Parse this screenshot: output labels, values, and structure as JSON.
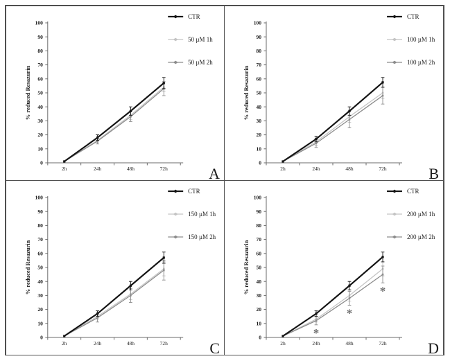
{
  "figure": {
    "description": "Four-panel line chart figure, resazurin reduction assay",
    "background_color": "#ffffff",
    "frame_color": "#4f4f4f"
  },
  "chart_data": [
    {
      "type": "line",
      "panel_label": "A",
      "ylabel": "% reduced Resazurin",
      "xlabel": "",
      "ylim": [
        0,
        100
      ],
      "yticks": [
        0,
        10,
        20,
        30,
        40,
        50,
        60,
        70,
        80,
        90,
        100
      ],
      "categories": [
        "2h",
        "24h",
        "48h",
        "72h"
      ],
      "grid": false,
      "legend_position": "top-right",
      "series": [
        {
          "name": "CTR",
          "color": "#141414",
          "line_width": 2.2,
          "values": [
            1,
            18,
            37,
            57
          ],
          "errors": [
            0.5,
            2,
            3,
            4
          ]
        },
        {
          "name": "50 µM 1h",
          "color": "#c4c4c4",
          "line_width": 1.3,
          "values": [
            1,
            16,
            34,
            54
          ],
          "errors": [
            0.5,
            1.5,
            3,
            3
          ]
        },
        {
          "name": "50 µM 2h",
          "color": "#8c8c8c",
          "line_width": 1.3,
          "values": [
            1,
            15.5,
            33,
            53
          ],
          "errors": [
            0.5,
            2,
            3.5,
            5
          ]
        }
      ],
      "significance": []
    },
    {
      "type": "line",
      "panel_label": "B",
      "ylabel": "% reduced Resazurin",
      "xlabel": "",
      "ylim": [
        0,
        100
      ],
      "yticks": [
        0,
        10,
        20,
        30,
        40,
        50,
        60,
        70,
        80,
        90,
        100
      ],
      "categories": [
        "2h",
        "24h",
        "48h",
        "72h"
      ],
      "grid": false,
      "legend_position": "top-right",
      "series": [
        {
          "name": "CTR",
          "color": "#141414",
          "line_width": 2.2,
          "values": [
            1,
            17,
            37,
            57.5
          ],
          "errors": [
            0.5,
            2,
            3,
            3.5
          ]
        },
        {
          "name": "100 µM 1h",
          "color": "#c4c4c4",
          "line_width": 1.3,
          "values": [
            1,
            15,
            33,
            50
          ],
          "errors": [
            0.5,
            2.5,
            4,
            4
          ]
        },
        {
          "name": "100 µM 2h",
          "color": "#8c8c8c",
          "line_width": 1.3,
          "values": [
            1,
            14,
            31,
            48
          ],
          "errors": [
            0.5,
            3,
            6,
            6
          ]
        }
      ],
      "significance": []
    },
    {
      "type": "line",
      "panel_label": "C",
      "ylabel": "% reduced Resazurin",
      "xlabel": "",
      "ylim": [
        0,
        100
      ],
      "yticks": [
        0,
        10,
        20,
        30,
        40,
        50,
        60,
        70,
        80,
        90,
        100
      ],
      "categories": [
        "2h",
        "24h",
        "48h",
        "72h"
      ],
      "grid": false,
      "legend_position": "top-right",
      "series": [
        {
          "name": "CTR",
          "color": "#141414",
          "line_width": 2.2,
          "values": [
            1,
            17,
            37,
            57
          ],
          "errors": [
            0.5,
            2,
            3,
            4
          ]
        },
        {
          "name": "150 µM 1h",
          "color": "#c4c4c4",
          "line_width": 1.3,
          "values": [
            1,
            15,
            31,
            49
          ],
          "errors": [
            0.5,
            2,
            4,
            5
          ]
        },
        {
          "name": "150 µM 2h",
          "color": "#8c8c8c",
          "line_width": 1.3,
          "values": [
            1,
            14,
            30,
            48
          ],
          "errors": [
            0.5,
            3,
            5,
            7
          ]
        }
      ],
      "significance": []
    },
    {
      "type": "line",
      "panel_label": "D",
      "ylabel": "% reduced Resazurin",
      "xlabel": "",
      "ylim": [
        0,
        100
      ],
      "yticks": [
        0,
        10,
        20,
        30,
        40,
        50,
        60,
        70,
        80,
        90,
        100
      ],
      "categories": [
        "2h",
        "24h",
        "48h",
        "72h"
      ],
      "grid": false,
      "legend_position": "top-right",
      "series": [
        {
          "name": "CTR",
          "color": "#141414",
          "line_width": 2.2,
          "values": [
            1,
            17,
            37,
            57.5
          ],
          "errors": [
            0.5,
            2,
            3,
            3.5
          ]
        },
        {
          "name": "200 µM 1h",
          "color": "#c4c4c4",
          "line_width": 1.3,
          "values": [
            1,
            13,
            30,
            49
          ],
          "errors": [
            0.5,
            2,
            4,
            5
          ]
        },
        {
          "name": "200 µM 2h",
          "color": "#8c8c8c",
          "line_width": 1.3,
          "values": [
            1,
            12,
            28,
            45
          ],
          "errors": [
            0.5,
            3,
            5,
            6
          ]
        }
      ],
      "significance": [
        {
          "category_index": 1,
          "value": 5,
          "symbol": "*"
        },
        {
          "category_index": 2,
          "value": 19,
          "symbol": "*"
        },
        {
          "category_index": 3,
          "value": 35,
          "symbol": "*"
        }
      ],
      "significance_color": "#6e6e6e"
    }
  ]
}
